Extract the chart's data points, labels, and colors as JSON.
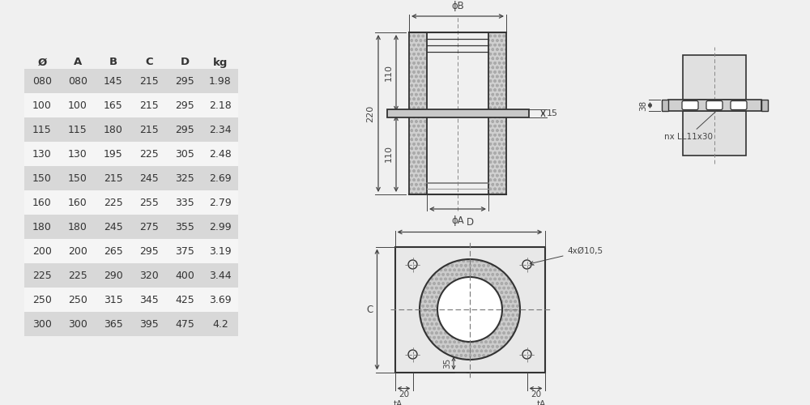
{
  "table": {
    "headers": [
      "Ø",
      "A",
      "B",
      "C",
      "D",
      "kg"
    ],
    "rows": [
      [
        "080",
        "080",
        "145",
        "215",
        "295",
        "1.98"
      ],
      [
        "100",
        "100",
        "165",
        "215",
        "295",
        "2.18"
      ],
      [
        "115",
        "115",
        "180",
        "215",
        "295",
        "2.34"
      ],
      [
        "130",
        "130",
        "195",
        "225",
        "305",
        "2.48"
      ],
      [
        "150",
        "150",
        "215",
        "245",
        "325",
        "2.69"
      ],
      [
        "160",
        "160",
        "225",
        "255",
        "335",
        "2.79"
      ],
      [
        "180",
        "180",
        "245",
        "275",
        "355",
        "2.99"
      ],
      [
        "200",
        "200",
        "265",
        "295",
        "375",
        "3.19"
      ],
      [
        "225",
        "225",
        "290",
        "320",
        "400",
        "3.44"
      ],
      [
        "250",
        "250",
        "315",
        "345",
        "425",
        "3.69"
      ],
      [
        "300",
        "300",
        "365",
        "395",
        "475",
        "4.2"
      ]
    ],
    "row_bg_odd": "#d8d8d8",
    "row_bg_even": "#f5f5f5",
    "text_color": "#333333"
  },
  "bg_color": "#f0f0f0",
  "line_color": "#333333",
  "dim_color": "#444444"
}
